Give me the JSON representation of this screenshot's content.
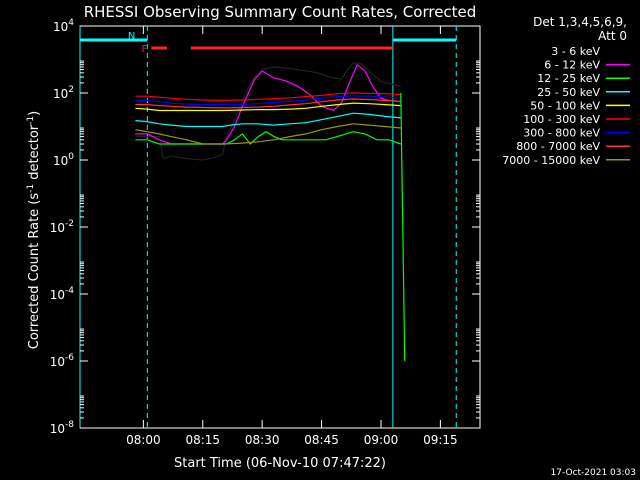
{
  "chart_data": {
    "type": "line",
    "title": "RHESSI Observing Summary Count Rates, Corrected",
    "xlabel": "Start Time (06-Nov-10 07:47:22)",
    "ylabel_main": "Corrected Count Rate (s",
    "ylabel_sup1": "-1",
    "ylabel_mid": " detector",
    "ylabel_sup2": "-1",
    "ylabel_end": ")",
    "x_unit": "minutes after 07:47",
    "xlim": [
      -3,
      98
    ],
    "ylog_range": [
      -8,
      4
    ],
    "xticks": [
      {
        "value": 13,
        "label": "08:00"
      },
      {
        "value": 28,
        "label": "08:15"
      },
      {
        "value": 43,
        "label": "08:30"
      },
      {
        "value": 58,
        "label": "08:45"
      },
      {
        "value": 73,
        "label": "09:00"
      },
      {
        "value": 88,
        "label": "09:15"
      }
    ],
    "yticks": [
      {
        "exp": 4,
        "base": "10",
        "sup": "4"
      },
      {
        "exp": 2,
        "base": "10",
        "sup": "2"
      },
      {
        "exp": 0,
        "base": "10",
        "sup": "0"
      },
      {
        "exp": -2,
        "base": "10",
        "sup": "-2"
      },
      {
        "exp": -4,
        "base": "10",
        "sup": "-4"
      },
      {
        "exp": -6,
        "base": "10",
        "sup": "-6"
      },
      {
        "exp": -8,
        "base": "10",
        "sup": "-8"
      }
    ],
    "legend": {
      "header_line1": "Det 1,3,4,5,6,9,",
      "header_line2": "Att 0",
      "placement": "right"
    },
    "series": [
      {
        "name": "3 - 6 keV",
        "color": "#000000",
        "points": [
          [
            11,
            5
          ],
          [
            14,
            5
          ],
          [
            17,
            5
          ],
          [
            18,
            1.1
          ],
          [
            20,
            1.3
          ],
          [
            24,
            1.1
          ],
          [
            28,
            1.0
          ],
          [
            31,
            1.2
          ],
          [
            33,
            1.5
          ],
          [
            34,
            5
          ],
          [
            36,
            15
          ],
          [
            38,
            60
          ],
          [
            41,
            300
          ],
          [
            43,
            500
          ],
          [
            46,
            600
          ],
          [
            49,
            560
          ],
          [
            53,
            480
          ],
          [
            57,
            400
          ],
          [
            60,
            300
          ],
          [
            63,
            260
          ],
          [
            64,
            400
          ],
          [
            66,
            800
          ],
          [
            68,
            750
          ],
          [
            70,
            450
          ],
          [
            73,
            220
          ],
          [
            76,
            180
          ],
          [
            78,
            160
          ]
        ]
      },
      {
        "name": "6 - 12 keV",
        "color": "#ff00ff",
        "points": [
          [
            11,
            6
          ],
          [
            14,
            6
          ],
          [
            17,
            4
          ],
          [
            20,
            3
          ],
          [
            24,
            3
          ],
          [
            28,
            3
          ],
          [
            33,
            3
          ],
          [
            34,
            4
          ],
          [
            36,
            10
          ],
          [
            38,
            40
          ],
          [
            41,
            250
          ],
          [
            43,
            450
          ],
          [
            46,
            280
          ],
          [
            49,
            230
          ],
          [
            52,
            160
          ],
          [
            55,
            90
          ],
          [
            58,
            40
          ],
          [
            61,
            30
          ],
          [
            63,
            50
          ],
          [
            65,
            200
          ],
          [
            67,
            700
          ],
          [
            69,
            450
          ],
          [
            71,
            150
          ],
          [
            73,
            70
          ],
          [
            75,
            60
          ],
          [
            78,
            55
          ]
        ]
      },
      {
        "name": "12 - 25 keV",
        "color": "#00ff00",
        "points": [
          [
            11,
            4
          ],
          [
            14,
            4
          ],
          [
            17,
            3
          ],
          [
            20,
            3
          ],
          [
            24,
            3
          ],
          [
            28,
            3
          ],
          [
            33,
            3
          ],
          [
            34,
            3
          ],
          [
            36,
            4
          ],
          [
            38,
            6
          ],
          [
            40,
            3
          ],
          [
            42,
            5
          ],
          [
            44,
            7
          ],
          [
            46,
            5
          ],
          [
            48,
            4
          ],
          [
            50,
            4
          ],
          [
            53,
            4
          ],
          [
            56,
            4
          ],
          [
            59,
            4
          ],
          [
            62,
            5
          ],
          [
            66,
            7
          ],
          [
            69,
            6
          ],
          [
            72,
            4
          ],
          [
            75,
            4
          ],
          [
            78,
            3
          ]
        ]
      },
      {
        "name": "25 - 50 keV",
        "color": "#00ffff",
        "points": [
          [
            11,
            15
          ],
          [
            14,
            14
          ],
          [
            17,
            12
          ],
          [
            20,
            11
          ],
          [
            24,
            10
          ],
          [
            28,
            10
          ],
          [
            33,
            10
          ],
          [
            35,
            11
          ],
          [
            38,
            12
          ],
          [
            42,
            12
          ],
          [
            46,
            11
          ],
          [
            50,
            12
          ],
          [
            54,
            13
          ],
          [
            58,
            16
          ],
          [
            62,
            20
          ],
          [
            66,
            25
          ],
          [
            70,
            23
          ],
          [
            74,
            20
          ],
          [
            78,
            18
          ]
        ]
      },
      {
        "name": "50 - 100 keV",
        "color": "#ffff00",
        "points": [
          [
            11,
            35
          ],
          [
            14,
            33
          ],
          [
            17,
            30
          ],
          [
            20,
            30
          ],
          [
            24,
            30
          ],
          [
            28,
            30
          ],
          [
            33,
            30
          ],
          [
            38,
            31
          ],
          [
            42,
            32
          ],
          [
            46,
            32
          ],
          [
            50,
            33
          ],
          [
            54,
            35
          ],
          [
            58,
            40
          ],
          [
            62,
            45
          ],
          [
            66,
            50
          ],
          [
            70,
            48
          ],
          [
            74,
            45
          ],
          [
            78,
            42
          ]
        ]
      },
      {
        "name": "100 - 300 keV",
        "color": "#ff0000",
        "points": [
          [
            11,
            80
          ],
          [
            14,
            80
          ],
          [
            17,
            75
          ],
          [
            20,
            70
          ],
          [
            24,
            65
          ],
          [
            28,
            62
          ],
          [
            33,
            60
          ],
          [
            38,
            62
          ],
          [
            42,
            65
          ],
          [
            46,
            68
          ],
          [
            50,
            72
          ],
          [
            54,
            78
          ],
          [
            58,
            85
          ],
          [
            62,
            95
          ],
          [
            66,
            100
          ],
          [
            70,
            98
          ],
          [
            74,
            95
          ],
          [
            78,
            90
          ]
        ]
      },
      {
        "name": "300 - 800 keV",
        "color": "#0000ff",
        "points": [
          [
            11,
            60
          ],
          [
            14,
            60
          ],
          [
            17,
            55
          ],
          [
            20,
            50
          ],
          [
            24,
            47
          ],
          [
            28,
            45
          ],
          [
            33,
            45
          ],
          [
            38,
            46
          ],
          [
            42,
            48
          ],
          [
            46,
            52
          ],
          [
            50,
            56
          ],
          [
            54,
            62
          ],
          [
            58,
            70
          ],
          [
            62,
            78
          ],
          [
            66,
            82
          ],
          [
            70,
            80
          ],
          [
            74,
            76
          ],
          [
            78,
            70
          ]
        ]
      },
      {
        "name": "800 - 7000 keV",
        "color": "#ff3333",
        "points": [
          [
            11,
            45
          ],
          [
            14,
            45
          ],
          [
            17,
            42
          ],
          [
            20,
            40
          ],
          [
            24,
            38
          ],
          [
            28,
            37
          ],
          [
            33,
            36
          ],
          [
            38,
            37
          ],
          [
            42,
            38
          ],
          [
            46,
            40
          ],
          [
            50,
            44
          ],
          [
            54,
            48
          ],
          [
            58,
            55
          ],
          [
            62,
            62
          ],
          [
            66,
            66
          ],
          [
            70,
            64
          ],
          [
            74,
            60
          ],
          [
            78,
            56
          ]
        ]
      },
      {
        "name": "7000 - 15000 keV",
        "color": "#999900",
        "points": [
          [
            11,
            8
          ],
          [
            14,
            7
          ],
          [
            17,
            6
          ],
          [
            20,
            5
          ],
          [
            24,
            4
          ],
          [
            28,
            3
          ],
          [
            33,
            3
          ],
          [
            38,
            3.2
          ],
          [
            42,
            3.5
          ],
          [
            46,
            4
          ],
          [
            50,
            5
          ],
          [
            54,
            6
          ],
          [
            58,
            8
          ],
          [
            62,
            10
          ],
          [
            66,
            12
          ],
          [
            70,
            11
          ],
          [
            74,
            10
          ],
          [
            78,
            9
          ]
        ]
      }
    ],
    "flags": [
      {
        "label": "F",
        "color": "#ff2222",
        "start": 15,
        "end": 19
      },
      {
        "label": "",
        "color": "#ff2222",
        "start": 25,
        "end": 76
      },
      {
        "label": "N",
        "color": "#00ffff",
        "start": 12,
        "end": 14
      }
    ],
    "night_bands": [
      {
        "start": -3,
        "end": 14
      },
      {
        "start": 76,
        "end": 92
      }
    ],
    "decay": {
      "start": 78,
      "end": 79,
      "drop_to": 1e-06
    }
  },
  "footer": {
    "date_stamp": "17-Oct-2021 03:03"
  }
}
